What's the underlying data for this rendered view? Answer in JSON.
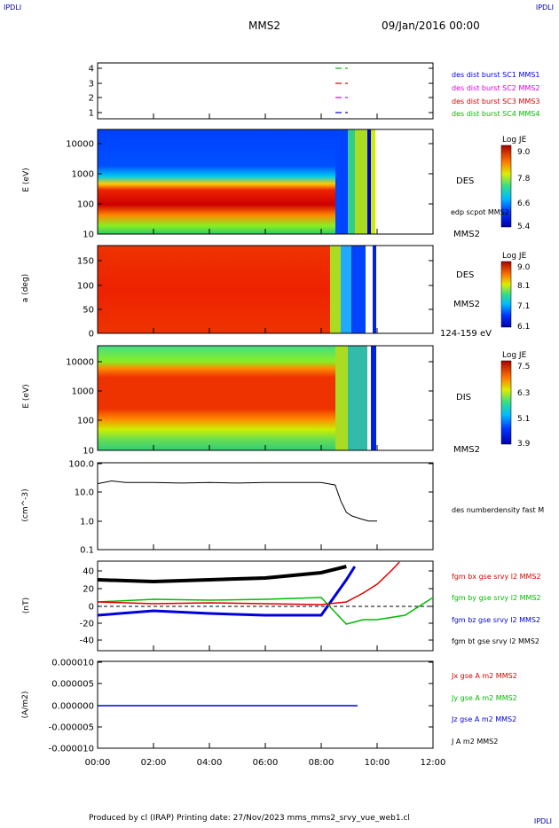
{
  "header": {
    "corner_left": "IPDLI",
    "corner_right": "IPDLI",
    "spacecraft": "MMS2",
    "date": "09/Jan/2016 00:00",
    "corner_bottom_right": "IPDLI"
  },
  "footer": {
    "text": "Produced by cl (IRAP)   Printing date: 27/Nov/2023   mms_mms2_srvy_vue_web1.cl"
  },
  "panels": {
    "p1": {
      "yticks": [
        "4",
        "3",
        "2",
        "1"
      ],
      "legend": [
        {
          "text": "des dist burst SC1 MMS1",
          "color": "#0000dd"
        },
        {
          "text": "des dist burst SC2 MMS2",
          "color": "#dd00dd"
        },
        {
          "text": "des dist burst SC3 MMS3",
          "color": "#dd0000"
        },
        {
          "text": "des dist burst SC4 MMS4",
          "color": "#00bb00"
        }
      ]
    },
    "p2": {
      "ylabel": "E (eV)",
      "yticks": [
        "10000",
        "1000",
        "100",
        "10"
      ],
      "side": [
        "DES",
        "edp scpot MMS2",
        "MMS2"
      ],
      "colorbar": {
        "title": "Log JE",
        "ticks": [
          "9.0",
          "7.8",
          "6.6",
          "5.4"
        ]
      }
    },
    "p3": {
      "ylabel": "a (deg)",
      "yticks": [
        "150",
        "100",
        "50",
        "0"
      ],
      "side": [
        "DES",
        "MMS2",
        "124-159 eV"
      ],
      "colorbar": {
        "title": "Log JE",
        "ticks": [
          "9.0",
          "8.1",
          "7.1",
          "6.1"
        ]
      }
    },
    "p4": {
      "ylabel": "E (eV)",
      "yticks": [
        "10000",
        "1000",
        "100",
        "10"
      ],
      "side": [
        "DIS",
        "MMS2"
      ],
      "colorbar": {
        "title": "Log JE",
        "ticks": [
          "7.5",
          "6.3",
          "5.1",
          "3.9"
        ]
      }
    },
    "p5": {
      "ylabel": "(cm^-3)",
      "yticks": [
        "100.0",
        "10.0",
        "1.0",
        "0.1"
      ],
      "side": [
        "des numberdensity fast M"
      ]
    },
    "p6": {
      "ylabel": "(nT)",
      "yticks": [
        "40",
        "20",
        "0",
        "-20",
        "-40"
      ],
      "legend": [
        {
          "text": "fgm bx gse srvy l2 MMS2",
          "color": "#dd0000"
        },
        {
          "text": "fgm by gse srvy l2 MMS2",
          "color": "#00bb00"
        },
        {
          "text": "fgm bz gse srvy l2 MMS2",
          "color": "#0000dd"
        },
        {
          "text": "fgm bt gse srvy l2 MMS2",
          "color": "#000000"
        }
      ]
    },
    "p7": {
      "ylabel": "(A/m2)",
      "yticks": [
        "0.000010",
        "0.000005",
        "0.000000",
        "-0.000005",
        "-0.000010"
      ],
      "legend": [
        {
          "text": "Jx gse A m2 MMS2",
          "color": "#dd0000"
        },
        {
          "text": "Jy gse A m2 MMS2",
          "color": "#00bb00"
        },
        {
          "text": "Jz gse A m2 MMS2",
          "color": "#0000dd"
        },
        {
          "text": "J A m2 MMS2",
          "color": "#000000"
        }
      ]
    }
  },
  "xaxis": {
    "ticks": [
      "00:00",
      "02:00",
      "04:00",
      "06:00",
      "08:00",
      "10:00",
      "12:00"
    ]
  },
  "chart_data": {
    "type": "line",
    "x_range_hours": [
      0,
      12
    ],
    "density": {
      "ylim": [
        0.1,
        100
      ],
      "scale": "log",
      "x": [
        0,
        0.5,
        1,
        2,
        3,
        4,
        5,
        6,
        7,
        8,
        8.5,
        8.7,
        8.9,
        9.1,
        9.4,
        9.7,
        10
      ],
      "y": [
        20,
        25,
        22,
        22,
        21,
        22,
        21,
        22,
        22,
        22,
        18,
        5,
        2,
        1.5,
        1.2,
        1.0,
        1.0
      ]
    },
    "bfield": {
      "ylim": [
        -50,
        50
      ],
      "bx": {
        "x": [
          0,
          2,
          4,
          6,
          8,
          8.9,
          9.5,
          10,
          10.5,
          10.8
        ],
        "y": [
          5,
          3,
          4,
          3,
          2,
          5,
          15,
          25,
          40,
          50
        ]
      },
      "by": {
        "x": [
          0,
          2,
          4,
          6,
          8,
          8.9,
          9.5,
          10,
          11,
          12
        ],
        "y": [
          5,
          8,
          7,
          8,
          10,
          -20,
          -15,
          -15,
          -10,
          10
        ]
      },
      "bz": {
        "x": [
          0,
          2,
          4,
          6,
          8,
          8.9,
          9.2
        ],
        "y": [
          -10,
          -5,
          -8,
          -10,
          -10,
          30,
          45
        ]
      },
      "bt": {
        "x": [
          0,
          2,
          4,
          6,
          8,
          8.9
        ],
        "y": [
          30,
          28,
          30,
          32,
          38,
          45
        ]
      }
    },
    "current": {
      "ylim": [
        -1e-05,
        1e-05
      ],
      "x": [
        0,
        9.3
      ],
      "y": [
        0,
        0
      ]
    }
  }
}
